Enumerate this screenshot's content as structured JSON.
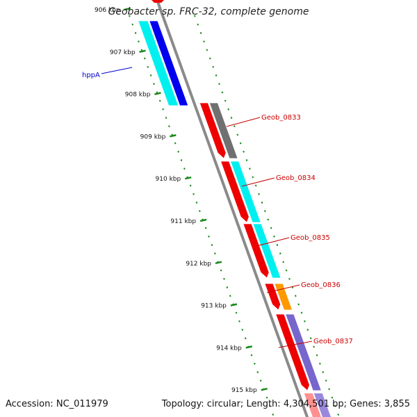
{
  "title": "Geobacter sp. FRC-32, complete genome",
  "footer": {
    "accession_label": "Accession:",
    "accession": "NC_011979",
    "topology_label": "Topology:",
    "topology": "circular",
    "length_label": "Length:",
    "length": "4,304,501 bp",
    "genes_label": "Genes:",
    "genes": "3,855"
  },
  "kbp_labels": [
    "906 kbp",
    "907 kbp",
    "908 kbp",
    "909 kbp",
    "910 kbp",
    "911 kbp",
    "912 kbp",
    "913 kbp",
    "914 kbp",
    "915 kbp"
  ],
  "genes": [
    {
      "label": "hppA",
      "label_color": "#0000cc",
      "color": "#0000ee",
      "shade": "#00f0f0"
    },
    {
      "label": "Geob_0833",
      "label_color": "#cc0000",
      "color": "#ee0000",
      "shade": "#707070"
    },
    {
      "label": "Geob_0834",
      "label_color": "#cc0000",
      "color": "#ee0000",
      "shade": "#00f0f0"
    },
    {
      "label": "Geob_0835",
      "label_color": "#cc0000",
      "color": "#ee0000",
      "shade": "#00f0f0"
    },
    {
      "label": "Geob_0836",
      "label_color": "#cc0000",
      "color": "#ee0000",
      "shade": "#ff9900"
    },
    {
      "label": "Geob_0837",
      "label_color": "#cc0000",
      "color": "#ee0000",
      "shade": "#7766cc"
    }
  ],
  "colors": {
    "backbone": "#8a8a8a",
    "ticks": "#1a8a1a"
  }
}
